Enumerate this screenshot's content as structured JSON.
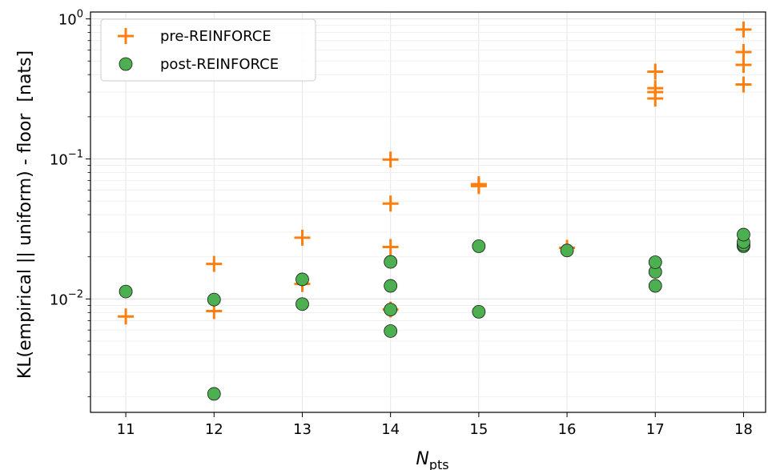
{
  "chart_data": {
    "type": "scatter",
    "xlabel": "N",
    "xlabel_sub": "pts",
    "ylabel": "KL(empirical || uniform) - floor  [nats]",
    "x_ticks": [
      11,
      12,
      13,
      14,
      15,
      16,
      17,
      18
    ],
    "xlim": [
      10.6,
      18.25
    ],
    "y_scale": "log",
    "ylim": [
      0.00155,
      1.12
    ],
    "y_major_ticks": [
      {
        "value": 0.01,
        "base": "10",
        "exp": "−2"
      },
      {
        "value": 0.1,
        "base": "10",
        "exp": "−1"
      },
      {
        "value": 1,
        "base": "10",
        "exp": "0"
      }
    ],
    "grid": true,
    "legend_position": "top-left",
    "series": [
      {
        "name": "pre-REINFORCE",
        "marker": "plus",
        "color": "#ff7f0e",
        "points": [
          {
            "x": 11,
            "y": 0.0075
          },
          {
            "x": 12,
            "y": 0.0082
          },
          {
            "x": 12,
            "y": 0.0178
          },
          {
            "x": 13,
            "y": 0.0128
          },
          {
            "x": 13,
            "y": 0.0274
          },
          {
            "x": 14,
            "y": 0.0084
          },
          {
            "x": 14,
            "y": 0.0235
          },
          {
            "x": 14,
            "y": 0.048
          },
          {
            "x": 14,
            "y": 0.099
          },
          {
            "x": 15,
            "y": 0.064
          },
          {
            "x": 15,
            "y": 0.066
          },
          {
            "x": 16,
            "y": 0.0232
          },
          {
            "x": 17,
            "y": 0.27
          },
          {
            "x": 17,
            "y": 0.3
          },
          {
            "x": 17,
            "y": 0.32
          },
          {
            "x": 17,
            "y": 0.42
          },
          {
            "x": 18,
            "y": 0.34
          },
          {
            "x": 18,
            "y": 0.47
          },
          {
            "x": 18,
            "y": 0.58
          },
          {
            "x": 18,
            "y": 0.84
          }
        ]
      },
      {
        "name": "post-REINFORCE",
        "marker": "circle",
        "color": "#4caf50",
        "points": [
          {
            "x": 11,
            "y": 0.0113
          },
          {
            "x": 12,
            "y": 0.0021
          },
          {
            "x": 12,
            "y": 0.0099
          },
          {
            "x": 13,
            "y": 0.0092
          },
          {
            "x": 13,
            "y": 0.0138
          },
          {
            "x": 14,
            "y": 0.0059
          },
          {
            "x": 14,
            "y": 0.0084
          },
          {
            "x": 14,
            "y": 0.0124
          },
          {
            "x": 14,
            "y": 0.0184
          },
          {
            "x": 15,
            "y": 0.0081
          },
          {
            "x": 15,
            "y": 0.0238
          },
          {
            "x": 16,
            "y": 0.0222
          },
          {
            "x": 17,
            "y": 0.0124
          },
          {
            "x": 17,
            "y": 0.0156
          },
          {
            "x": 17,
            "y": 0.0183
          },
          {
            "x": 18,
            "y": 0.0238
          },
          {
            "x": 18,
            "y": 0.0244
          },
          {
            "x": 18,
            "y": 0.0255
          },
          {
            "x": 18,
            "y": 0.0288
          }
        ]
      }
    ]
  }
}
